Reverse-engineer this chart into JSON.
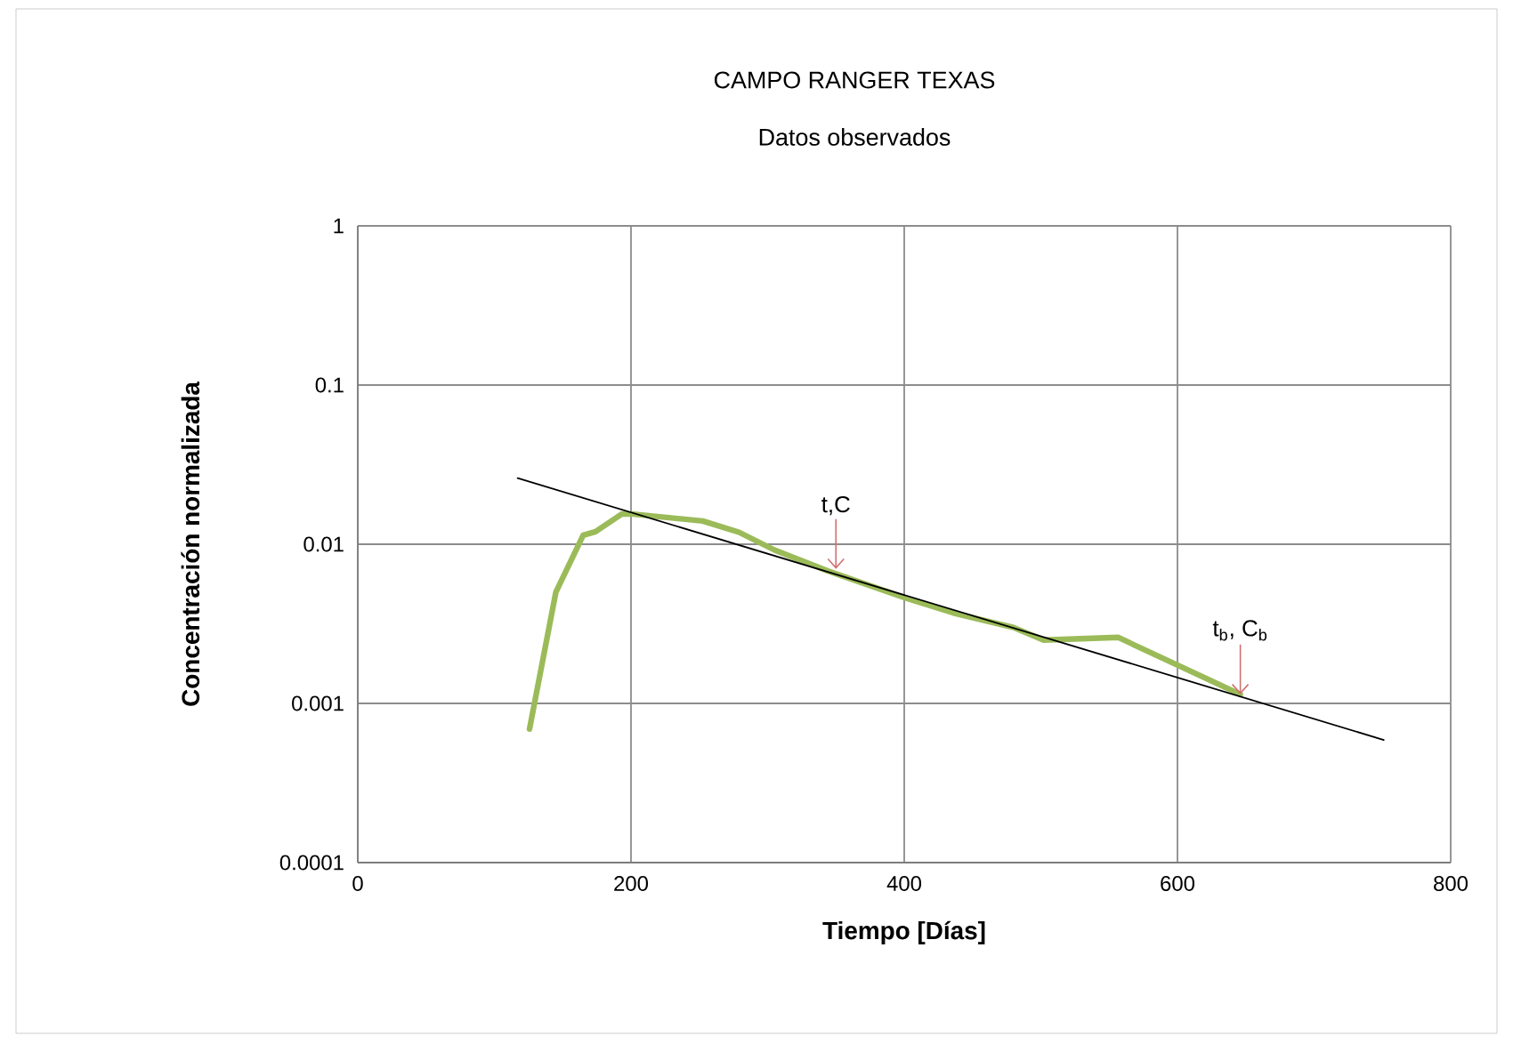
{
  "chart_data": {
    "type": "line",
    "title": "CAMPO RANGER TEXAS",
    "subtitle": "Datos observados",
    "xlabel": "Tiempo [Días]",
    "ylabel": "Concentración normalizada",
    "log": "y",
    "grid": true,
    "legend": false,
    "marker": "none",
    "line_style": "solid",
    "xlim": [
      0,
      800
    ],
    "xticks": [
      0,
      200,
      400,
      600,
      800
    ],
    "ylim": [
      0.0001,
      1
    ],
    "yticks": [
      0.0001,
      0.001,
      0.01,
      0.1,
      1
    ],
    "series": [
      {
        "color": "#9bbb59",
        "x": [
          125.7,
          145,
          165,
          174,
          193.4,
          200,
          252.5,
          279,
          305,
          344,
          401,
          436,
          480,
          502,
          556.5,
          646
        ],
        "values": [
          0.00069,
          0.005,
          0.0114,
          0.012,
          0.0155,
          0.0155,
          0.014,
          0.0119,
          0.0092,
          0.0068,
          0.0046,
          0.0037,
          0.003,
          0.0025,
          0.0026,
          0.00114
        ]
      },
      {
        "color": "#000000",
        "x": [
          117,
          751
        ],
        "values": [
          0.026,
          0.00059
        ]
      }
    ],
    "annotations": [
      {
        "text": "t,C",
        "x": 350,
        "y": 0.007
      },
      {
        "text": "t$_{b}$, C$_{b}$",
        "x": 646,
        "y": 0.00114
      }
    ]
  }
}
